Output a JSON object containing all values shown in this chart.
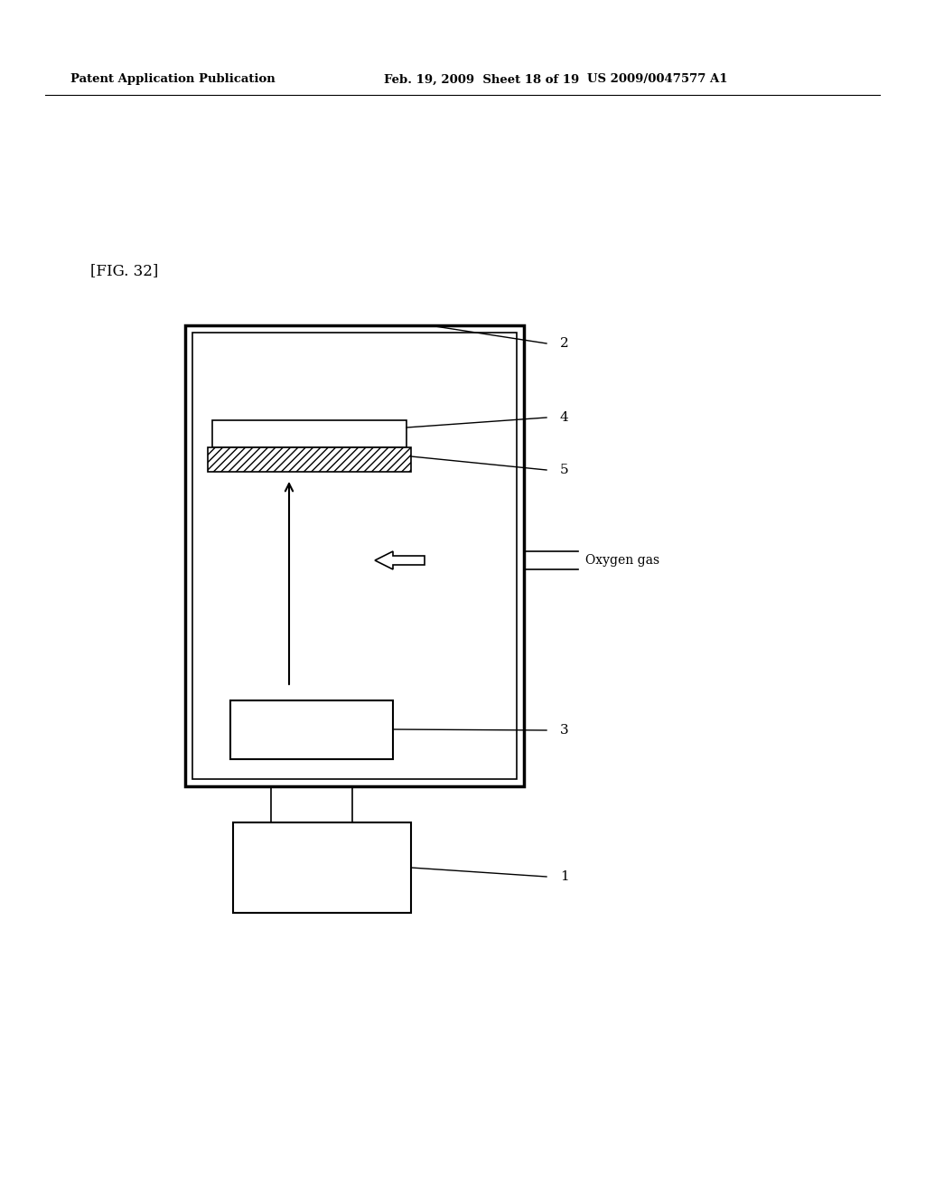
{
  "bg_color": "#ffffff",
  "header_left": "Patent Application Publication",
  "header_mid": "Feb. 19, 2009  Sheet 18 of 19",
  "header_right": "US 2009/0047577 A1",
  "fig_label": "[FIG. 32]",
  "label_1": "1",
  "label_2": "2",
  "label_3": "3",
  "label_4": "4",
  "label_5": "5",
  "oxygen_label": "Oxygen gas"
}
